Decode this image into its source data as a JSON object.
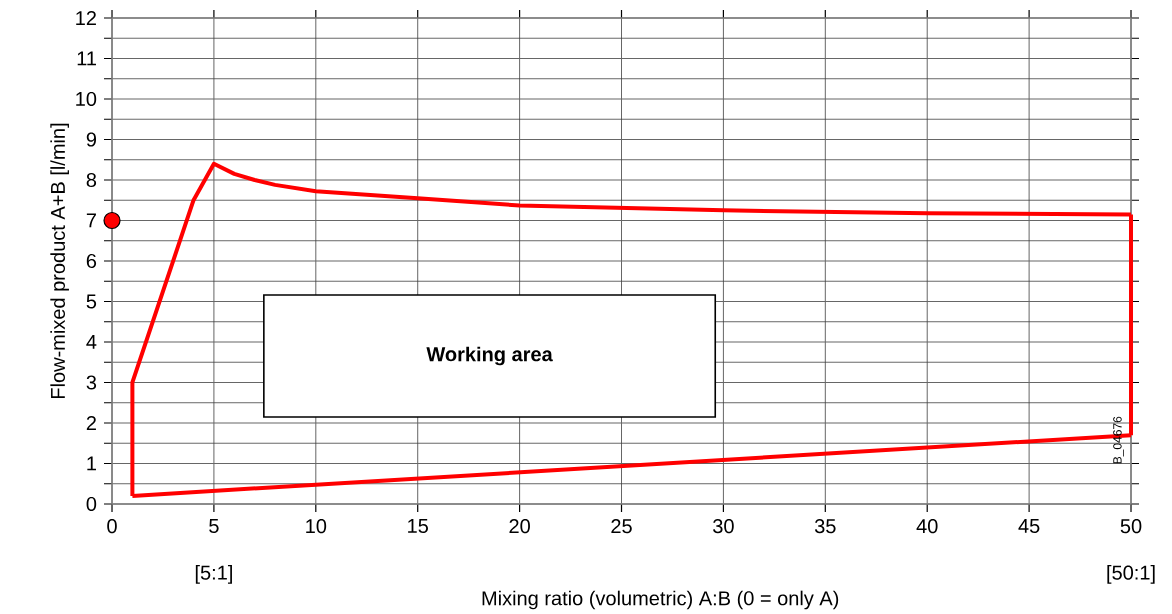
{
  "chart_data": {
    "type": "line",
    "xlabel": "Mixing ratio (volumetric) A:B (0 = only A)",
    "ylabel": "Flow-mixed product A+B [l/min]",
    "xlim": [
      0,
      50
    ],
    "ylim": [
      0,
      12
    ],
    "xticks": [
      0,
      5,
      10,
      15,
      20,
      25,
      30,
      35,
      40,
      45,
      50
    ],
    "yticks": [
      0,
      1,
      2,
      3,
      4,
      5,
      6,
      7,
      8,
      9,
      10,
      11,
      12
    ],
    "grid": true,
    "line_style": "solid",
    "marker": "none",
    "series": [
      {
        "type": "line",
        "color": "#ff0000",
        "x": [
          1,
          1,
          4,
          5,
          6,
          7,
          8,
          10,
          15,
          20,
          30,
          40,
          50
        ],
        "values": [
          0.2,
          3,
          7.5,
          8.4,
          8.15,
          8.0,
          7.88,
          7.72,
          7.55,
          7.37,
          7.25,
          7.18,
          7.15
        ]
      },
      {
        "color": "#ff0000",
        "x": [
          50,
          50
        ],
        "values": [
          7.15,
          1.7
        ]
      },
      {
        "color": "#ff0000",
        "x": [
          1,
          50
        ],
        "values": [
          0.2,
          1.7
        ]
      },
      {
        "type": "scatter",
        "color": "#ff0000",
        "marker": "circle",
        "x": [
          0
        ],
        "values": [
          7
        ]
      }
    ],
    "annotations": [
      "Working area",
      "B_04676",
      "[5:1]",
      "[50:1]"
    ]
  }
}
